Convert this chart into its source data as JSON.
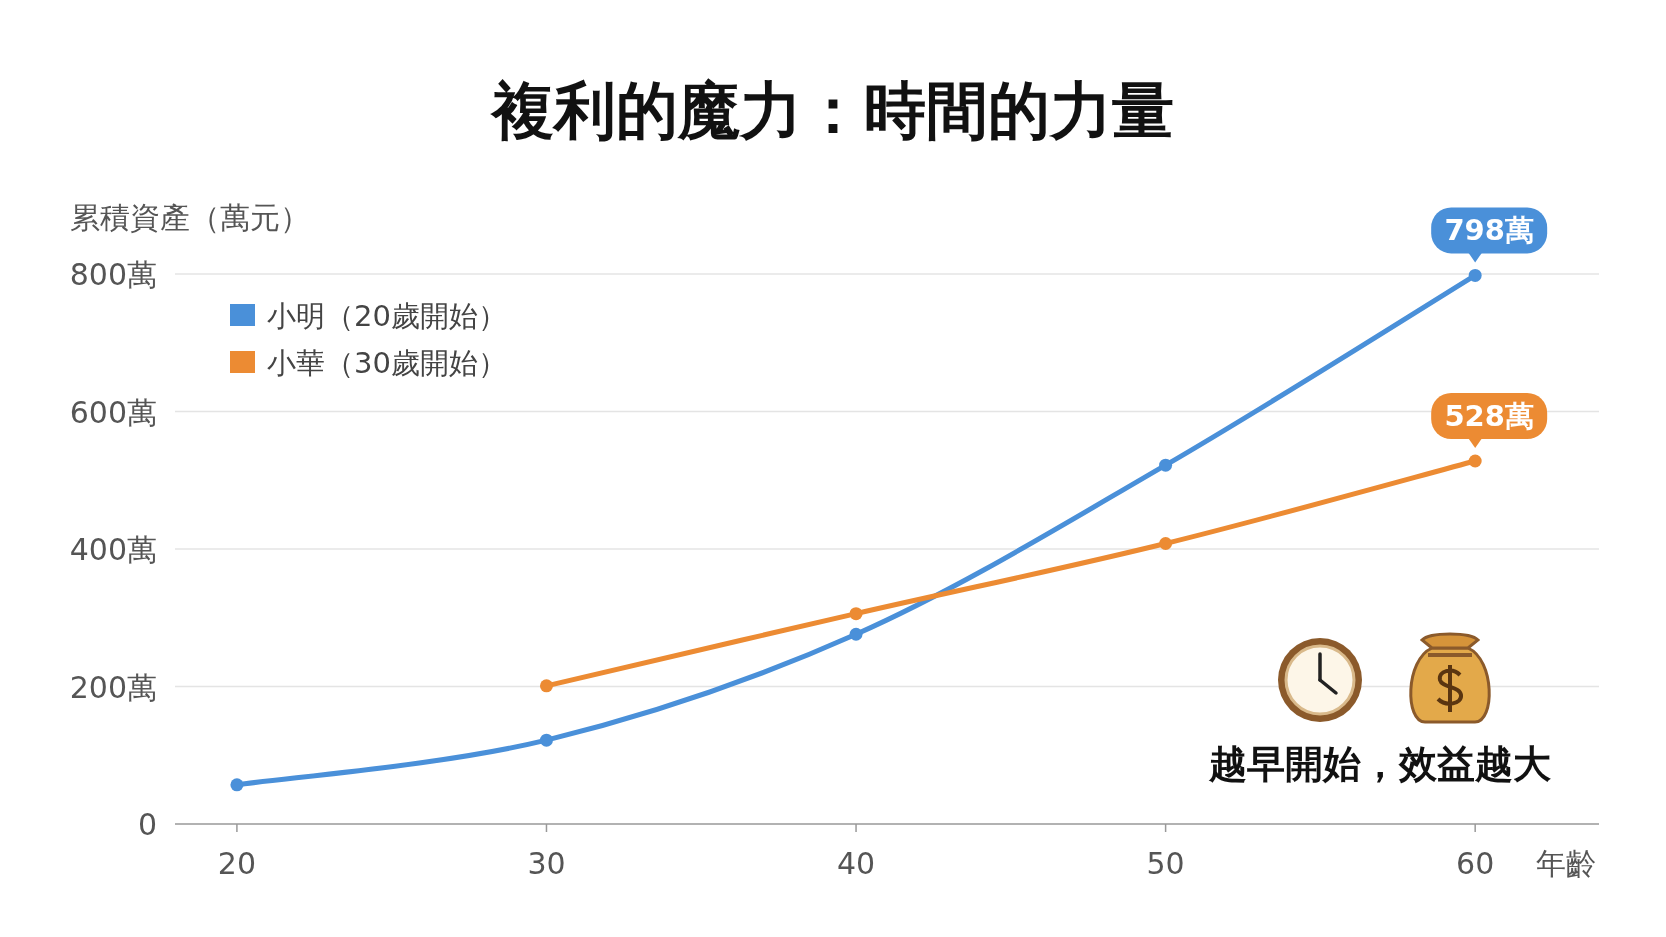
{
  "chart_data": {
    "type": "line",
    "title": "複利的魔力：時間的力量",
    "ylabel": "累積資產（萬元）",
    "xlabel": "年齡",
    "x": [
      20,
      30,
      40,
      50,
      60
    ],
    "series": [
      {
        "name": "小明（20歲開始）",
        "color": "#4a90d9",
        "values": [
          57,
          122,
          276,
          522,
          798
        ],
        "value_labels": [
          null,
          null,
          null,
          null,
          "798萬"
        ]
      },
      {
        "name": "小華（30歲開始）",
        "color": "#ec8b33",
        "values": [
          null,
          201,
          306,
          408,
          528
        ],
        "value_labels": [
          null,
          null,
          null,
          null,
          "528萬"
        ]
      }
    ],
    "xlim": [
      18,
      64
    ],
    "xticks": [
      20,
      30,
      40,
      50,
      60
    ],
    "ylim": [
      0,
      800
    ],
    "yticks": [
      {
        "value": 0,
        "label": "0"
      },
      {
        "value": 200,
        "label": "200萬"
      },
      {
        "value": 400,
        "label": "400萬"
      },
      {
        "value": 600,
        "label": "600萬"
      },
      {
        "value": 800,
        "label": "800萬"
      }
    ],
    "grid": "y",
    "legend": "top left",
    "marker": "circle",
    "line_style": "solid",
    "annotations": [
      "越早開始，效益越大"
    ]
  }
}
